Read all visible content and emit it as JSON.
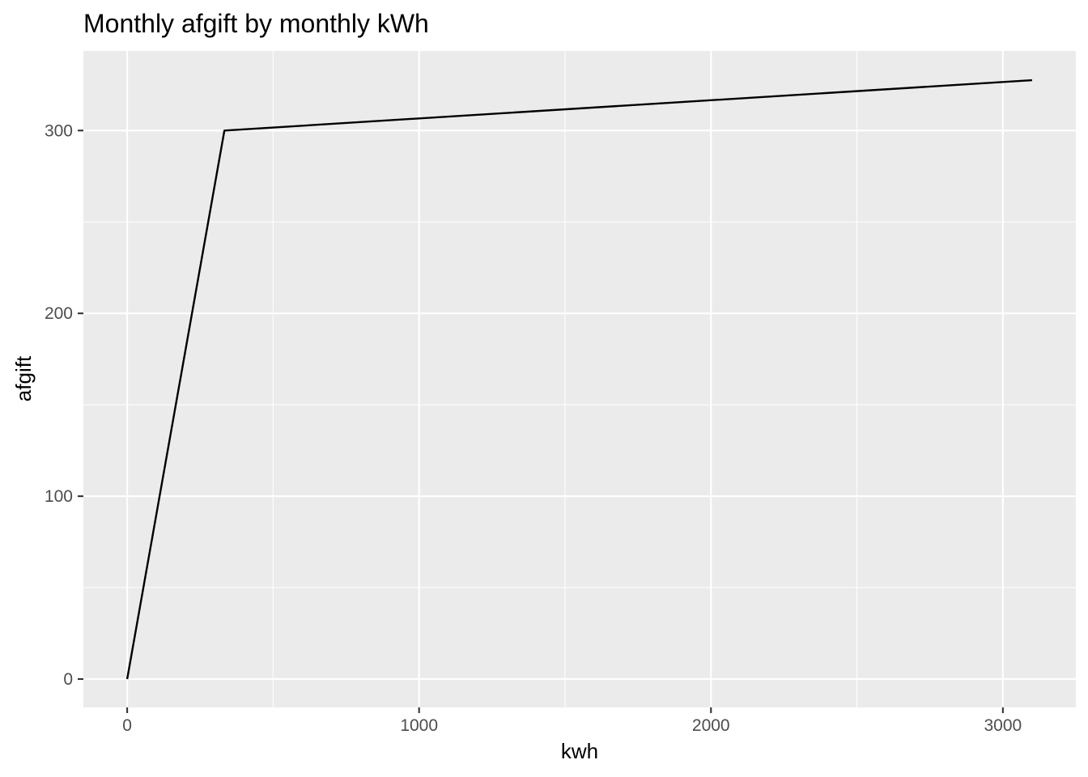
{
  "chart_data": {
    "type": "line",
    "title": "Monthly afgift by monthly kWh",
    "xlabel": "kwh",
    "ylabel": "afgift",
    "xlim": [
      -150,
      3250
    ],
    "ylim": [
      -15.5,
      343.5
    ],
    "x_ticks": [
      0,
      1000,
      2000,
      3000
    ],
    "x_tick_labels": [
      "0",
      "1000",
      "2000",
      "3000"
    ],
    "x_minor_ticks": [
      500,
      1500,
      2500
    ],
    "y_ticks": [
      0,
      100,
      200,
      300
    ],
    "y_tick_labels": [
      "0",
      "100",
      "200",
      "300"
    ],
    "y_minor_ticks": [
      50,
      150,
      250
    ],
    "grid": true,
    "legend": "none",
    "series": [
      {
        "x": [
          0,
          333,
          3100
        ],
        "y": [
          0,
          300,
          327.5
        ]
      }
    ],
    "colors": {
      "panel_background": "#EBEBEB",
      "grid_major": "#FFFFFF",
      "line": "#000000",
      "tick_label": "#4D4D4D",
      "tick_mark": "#333333"
    }
  }
}
